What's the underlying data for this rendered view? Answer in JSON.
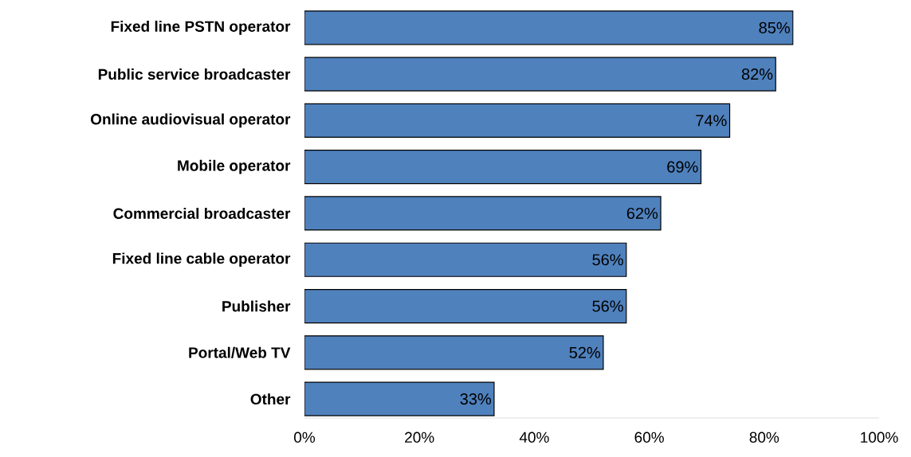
{
  "chart_data": {
    "type": "bar",
    "orientation": "horizontal",
    "categories": [
      "Fixed line PSTN operator",
      "Public service broadcaster",
      "Online audiovisual operator",
      "Mobile operator",
      "Commercial broadcaster",
      "Fixed line cable operator",
      "Publisher",
      "Portal/Web TV",
      "Other"
    ],
    "values": [
      85,
      82,
      74,
      69,
      62,
      56,
      56,
      52,
      33
    ],
    "value_labels": [
      "85%",
      "82%",
      "74%",
      "69%",
      "62%",
      "56%",
      "56%",
      "52%",
      "33%"
    ],
    "color": "#4f81bd",
    "xlim": [
      0,
      100
    ],
    "xticks": [
      {
        "value": 0,
        "label": "0%"
      },
      {
        "value": 20,
        "label": "20%"
      },
      {
        "value": 40,
        "label": "40%"
      },
      {
        "value": 60,
        "label": "60%"
      },
      {
        "value": 80,
        "label": "80%"
      },
      {
        "value": 100,
        "label": "100%"
      }
    ]
  }
}
